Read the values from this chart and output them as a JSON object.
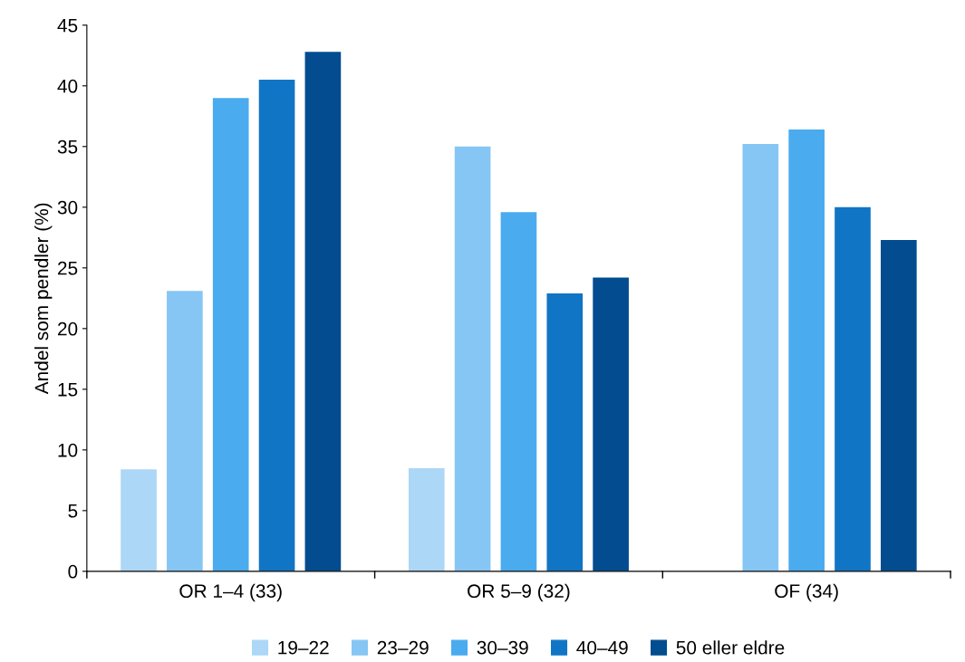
{
  "chart_data": {
    "type": "bar",
    "ylabel": "Andel som pendler (%)",
    "categories": [
      "OR 1–4 (33)",
      "OR 5–9 (32)",
      "OF (34)"
    ],
    "series": [
      {
        "name": "19–22",
        "color": "#acd7f7",
        "values": [
          8.4,
          8.5,
          null
        ]
      },
      {
        "name": "23–29",
        "color": "#86c6f4",
        "values": [
          23.1,
          35.0,
          35.2
        ]
      },
      {
        "name": "30–39",
        "color": "#4aabef",
        "values": [
          39.0,
          29.6,
          36.4
        ]
      },
      {
        "name": "40–49",
        "color": "#1175c5",
        "values": [
          40.5,
          22.9,
          30.0
        ]
      },
      {
        "name": "50 eller eldre",
        "color": "#024c8f",
        "values": [
          42.8,
          24.2,
          27.3
        ]
      }
    ],
    "ylim": [
      0,
      45
    ],
    "yticks": [
      0,
      5,
      10,
      15,
      20,
      25,
      30,
      35,
      40,
      45
    ],
    "grid": false,
    "legend": "bottom"
  }
}
